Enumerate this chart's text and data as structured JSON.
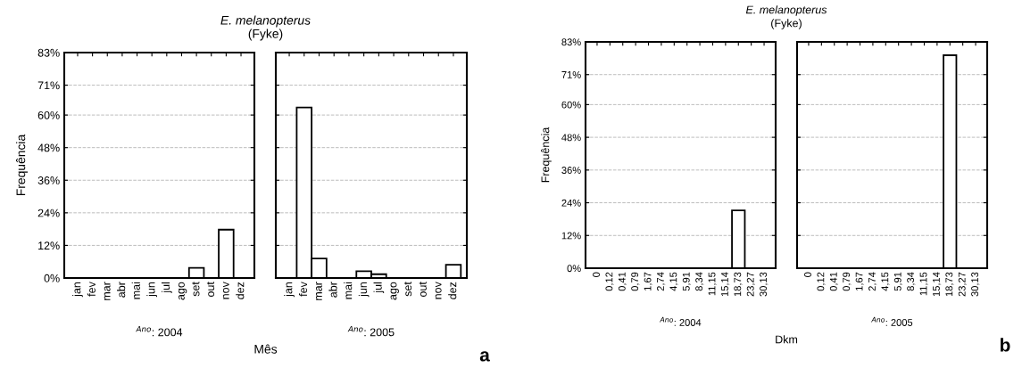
{
  "chart_data": [
    {
      "type": "bar",
      "title": "E. melanopterus",
      "subtitle": "(Fyke)",
      "xlabel": "Mês",
      "ylabel": "Frequência",
      "annotations": [
        "$^{Ano}$: 2004"
      ],
      "categories": [
        "jan",
        "fev",
        "mar",
        "abr",
        "mai",
        "jun",
        "jul",
        "ago",
        "set",
        "out",
        "nov",
        "dez"
      ],
      "values": [
        0,
        0,
        0,
        0,
        0,
        0,
        0,
        0,
        3.7,
        0,
        17.8,
        0
      ],
      "color": "#ffffff",
      "ylim": [
        0,
        83
      ],
      "yticks": [
        {
          "value": 0,
          "label": "0%"
        },
        {
          "value": 12,
          "label": "12%"
        },
        {
          "value": 24,
          "label": "24%"
        },
        {
          "value": 36,
          "label": "36%"
        },
        {
          "value": 48,
          "label": "48%"
        },
        {
          "value": 60,
          "label": "60%"
        },
        {
          "value": 71,
          "label": "71%"
        },
        {
          "value": 83,
          "label": "83%"
        }
      ],
      "grid": "y"
    },
    {
      "type": "bar",
      "annotations": [
        "$^{Ano}$: 2005",
        "a"
      ],
      "categories": [
        "jan",
        "fev",
        "mar",
        "abr",
        "mai",
        "jun",
        "jul",
        "ago",
        "set",
        "out",
        "nov",
        "dez"
      ],
      "values": [
        0,
        62.8,
        7.2,
        0,
        0,
        2.5,
        1.4,
        0,
        0,
        0,
        0,
        4.9
      ],
      "color": "#ffffff",
      "ylim": [
        0,
        83
      ],
      "yticks": [
        {
          "value": 0,
          "label": null
        },
        {
          "value": 12,
          "label": null
        },
        {
          "value": 24,
          "label": null
        },
        {
          "value": 36,
          "label": null
        },
        {
          "value": 48,
          "label": null
        },
        {
          "value": 60,
          "label": null
        },
        {
          "value": 71,
          "label": null
        },
        {
          "value": 83,
          "label": null
        }
      ],
      "grid": "y",
      "tick_labels": "x"
    },
    {
      "type": "bar",
      "title": "E. melanopterus",
      "subtitle": "(Fyke)",
      "xlabel": "Dkm",
      "ylabel": "Frequência",
      "annotations": [
        "$^{Ano}$: 2004"
      ],
      "categories": [
        "0",
        "0,12",
        "0,41",
        "0,79",
        "1,67",
        "2,74",
        "4,15",
        "5,91",
        "8,34",
        "11,15",
        "15,14",
        "18,73",
        "23,27",
        "30,13"
      ],
      "values": [
        0,
        0,
        0,
        0,
        0,
        0,
        0,
        0,
        0,
        0,
        0,
        21.2,
        0,
        0
      ],
      "color": "#ffffff",
      "ylim": [
        0,
        83
      ],
      "yticks": [
        {
          "value": 0,
          "label": "0%"
        },
        {
          "value": 12,
          "label": "12%"
        },
        {
          "value": 24,
          "label": "24%"
        },
        {
          "value": 36,
          "label": "36%"
        },
        {
          "value": 48,
          "label": "48%"
        },
        {
          "value": 60,
          "label": "60%"
        },
        {
          "value": 71,
          "label": "71%"
        },
        {
          "value": 83,
          "label": "83%"
        }
      ],
      "grid": "y"
    },
    {
      "type": "bar",
      "annotations": [
        "$^{Ano}$: 2005",
        "b"
      ],
      "categories": [
        "0",
        "0,12",
        "0,41",
        "0,79",
        "1,67",
        "2,74",
        "4,15",
        "5,91",
        "8,34",
        "11,15",
        "15,14",
        "18,73",
        "23,27",
        "30,13"
      ],
      "values": [
        0,
        0,
        0,
        0,
        0,
        0,
        0,
        0,
        0,
        0,
        0,
        78.1,
        0,
        0
      ],
      "color": "#ffffff",
      "ylim": [
        0,
        83
      ],
      "yticks": [
        {
          "value": 0,
          "label": null
        },
        {
          "value": 12,
          "label": null
        },
        {
          "value": 24,
          "label": null
        },
        {
          "value": 36,
          "label": null
        },
        {
          "value": 48,
          "label": null
        },
        {
          "value": 60,
          "label": null
        },
        {
          "value": 71,
          "label": null
        },
        {
          "value": 83,
          "label": null
        }
      ],
      "grid": "y",
      "tick_labels": "x"
    }
  ]
}
